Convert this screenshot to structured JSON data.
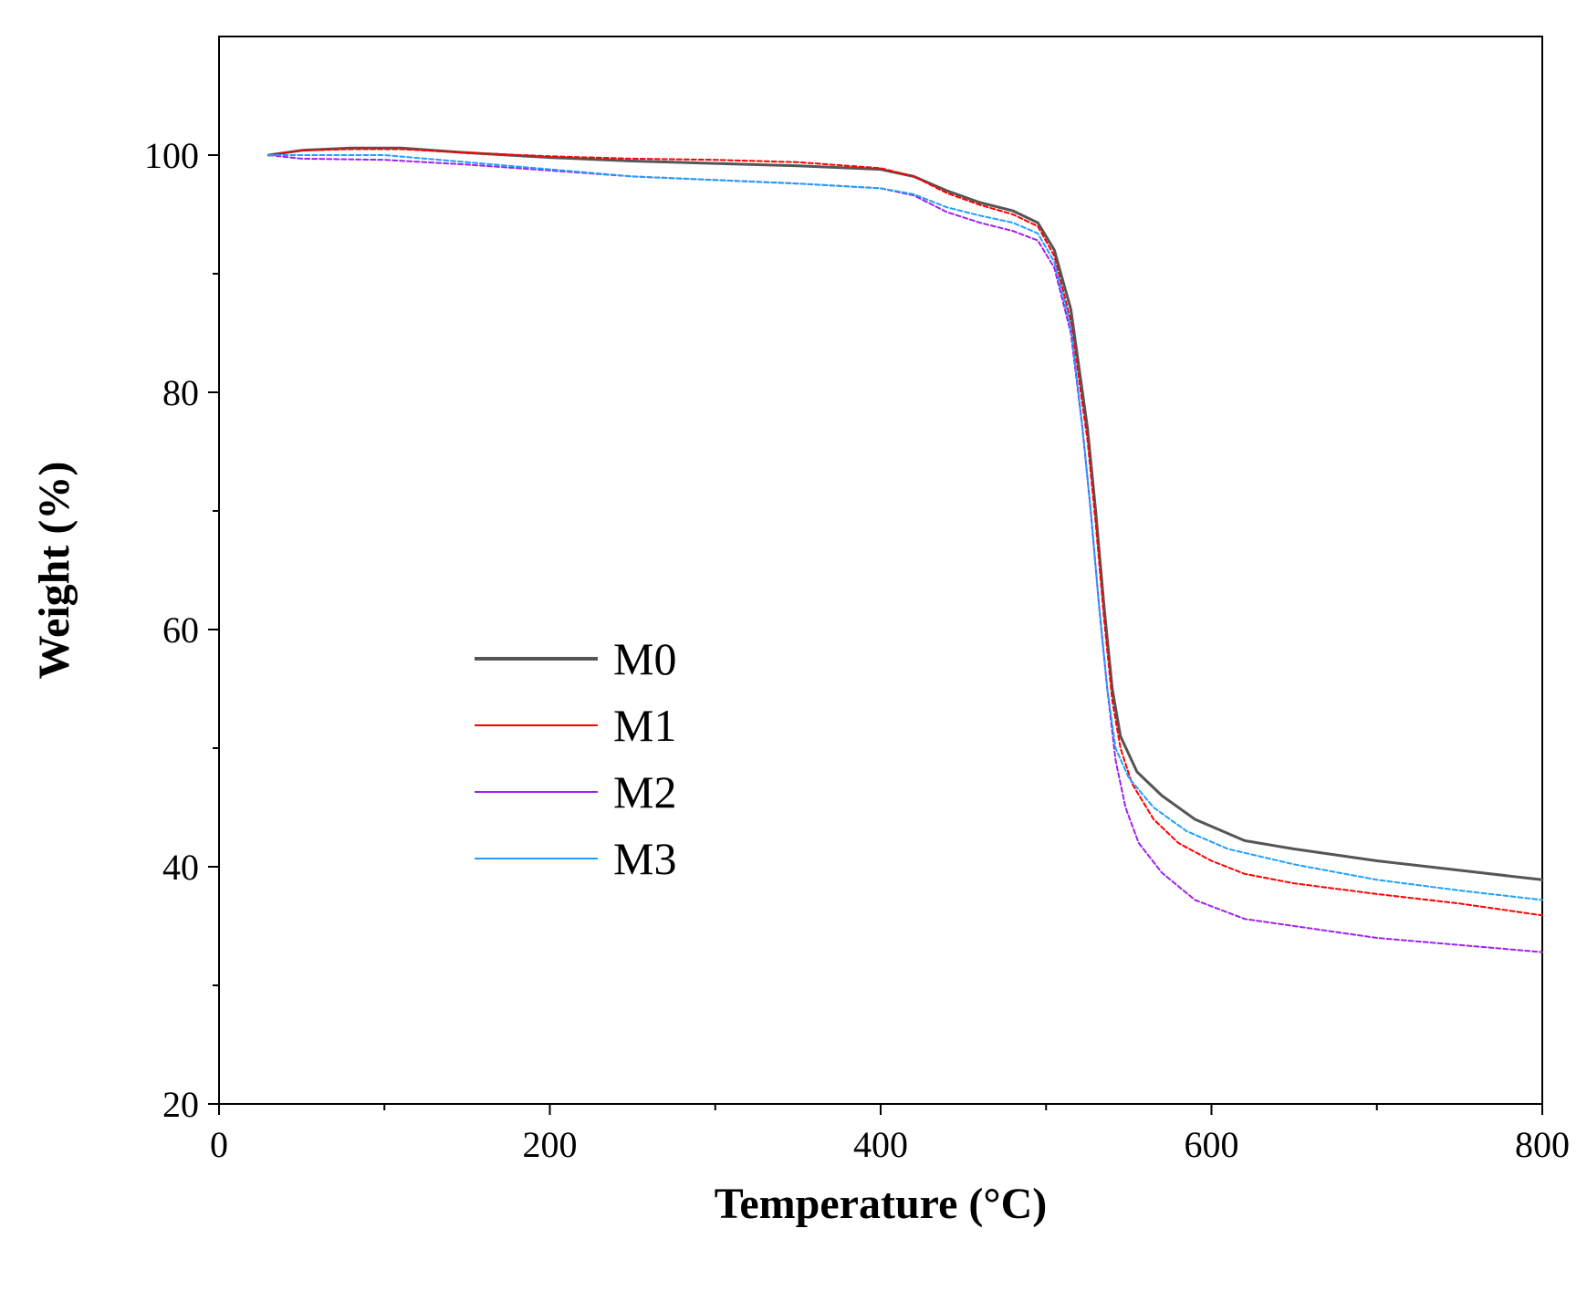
{
  "chart_data": {
    "type": "line",
    "xlabel": "Temperature (°C)",
    "ylabel": "Weight (%)",
    "xlim": [
      0,
      800
    ],
    "ylim": [
      20,
      110
    ],
    "xticks": [
      0,
      200,
      400,
      600,
      800
    ],
    "xticks_minor": [
      100,
      300,
      500,
      700
    ],
    "yticks": [
      20,
      40,
      60,
      80,
      100
    ],
    "yticks_minor": [
      30,
      50,
      70,
      90
    ],
    "grid": false,
    "legend_position": "center-left",
    "series": [
      {
        "name": "M0",
        "color": "#555555",
        "style": "solid",
        "points": [
          [
            30,
            100
          ],
          [
            50,
            100.4
          ],
          [
            80,
            100.6
          ],
          [
            110,
            100.6
          ],
          [
            150,
            100.2
          ],
          [
            200,
            99.8
          ],
          [
            250,
            99.5
          ],
          [
            300,
            99.3
          ],
          [
            350,
            99.1
          ],
          [
            400,
            98.8
          ],
          [
            420,
            98.2
          ],
          [
            440,
            97
          ],
          [
            460,
            96
          ],
          [
            480,
            95.3
          ],
          [
            495,
            94.3
          ],
          [
            505,
            92
          ],
          [
            515,
            87
          ],
          [
            525,
            77
          ],
          [
            530,
            70
          ],
          [
            535,
            62
          ],
          [
            540,
            55
          ],
          [
            545,
            51
          ],
          [
            555,
            48
          ],
          [
            570,
            46
          ],
          [
            590,
            44
          ],
          [
            620,
            42.2
          ],
          [
            650,
            41.5
          ],
          [
            700,
            40.5
          ],
          [
            750,
            39.7
          ],
          [
            800,
            38.9
          ]
        ]
      },
      {
        "name": "M1",
        "color": "#ff0000",
        "style": "dashed",
        "points": [
          [
            30,
            100
          ],
          [
            50,
            100.4
          ],
          [
            80,
            100.5
          ],
          [
            110,
            100.5
          ],
          [
            150,
            100.2
          ],
          [
            200,
            99.9
          ],
          [
            250,
            99.7
          ],
          [
            300,
            99.6
          ],
          [
            350,
            99.4
          ],
          [
            400,
            98.9
          ],
          [
            420,
            98.2
          ],
          [
            440,
            96.8
          ],
          [
            460,
            95.8
          ],
          [
            480,
            95
          ],
          [
            495,
            94
          ],
          [
            505,
            91.5
          ],
          [
            515,
            86
          ],
          [
            525,
            76
          ],
          [
            530,
            69
          ],
          [
            535,
            61
          ],
          [
            540,
            54
          ],
          [
            545,
            50
          ],
          [
            552,
            47
          ],
          [
            565,
            44
          ],
          [
            580,
            42
          ],
          [
            600,
            40.5
          ],
          [
            620,
            39.4
          ],
          [
            650,
            38.6
          ],
          [
            700,
            37.7
          ],
          [
            750,
            36.9
          ],
          [
            800,
            35.9
          ]
        ]
      },
      {
        "name": "M2",
        "color": "#a020f0",
        "style": "dashed",
        "points": [
          [
            30,
            100
          ],
          [
            50,
            99.7
          ],
          [
            100,
            99.6
          ],
          [
            150,
            99.2
          ],
          [
            200,
            98.7
          ],
          [
            250,
            98.2
          ],
          [
            300,
            97.9
          ],
          [
            350,
            97.6
          ],
          [
            400,
            97.2
          ],
          [
            420,
            96.6
          ],
          [
            440,
            95.2
          ],
          [
            460,
            94.3
          ],
          [
            480,
            93.6
          ],
          [
            495,
            92.8
          ],
          [
            505,
            90.5
          ],
          [
            515,
            85
          ],
          [
            522,
            77
          ],
          [
            527,
            70
          ],
          [
            532,
            62
          ],
          [
            537,
            55
          ],
          [
            542,
            49
          ],
          [
            548,
            45
          ],
          [
            556,
            42
          ],
          [
            570,
            39.5
          ],
          [
            590,
            37.2
          ],
          [
            620,
            35.6
          ],
          [
            650,
            35
          ],
          [
            700,
            34
          ],
          [
            750,
            33.4
          ],
          [
            800,
            32.8
          ]
        ]
      },
      {
        "name": "M3",
        "color": "#1ea0ff",
        "style": "dashed",
        "points": [
          [
            30,
            100
          ],
          [
            50,
            100
          ],
          [
            100,
            100
          ],
          [
            150,
            99.4
          ],
          [
            200,
            98.8
          ],
          [
            250,
            98.2
          ],
          [
            300,
            97.9
          ],
          [
            350,
            97.6
          ],
          [
            400,
            97.2
          ],
          [
            420,
            96.7
          ],
          [
            440,
            95.6
          ],
          [
            460,
            94.9
          ],
          [
            480,
            94.3
          ],
          [
            495,
            93.4
          ],
          [
            505,
            91
          ],
          [
            515,
            85.5
          ],
          [
            522,
            77
          ],
          [
            527,
            70
          ],
          [
            532,
            62
          ],
          [
            537,
            55
          ],
          [
            542,
            50
          ],
          [
            550,
            47.5
          ],
          [
            565,
            45
          ],
          [
            585,
            43
          ],
          [
            610,
            41.5
          ],
          [
            650,
            40.2
          ],
          [
            700,
            38.9
          ],
          [
            750,
            38
          ],
          [
            800,
            37.2
          ]
        ]
      }
    ]
  }
}
